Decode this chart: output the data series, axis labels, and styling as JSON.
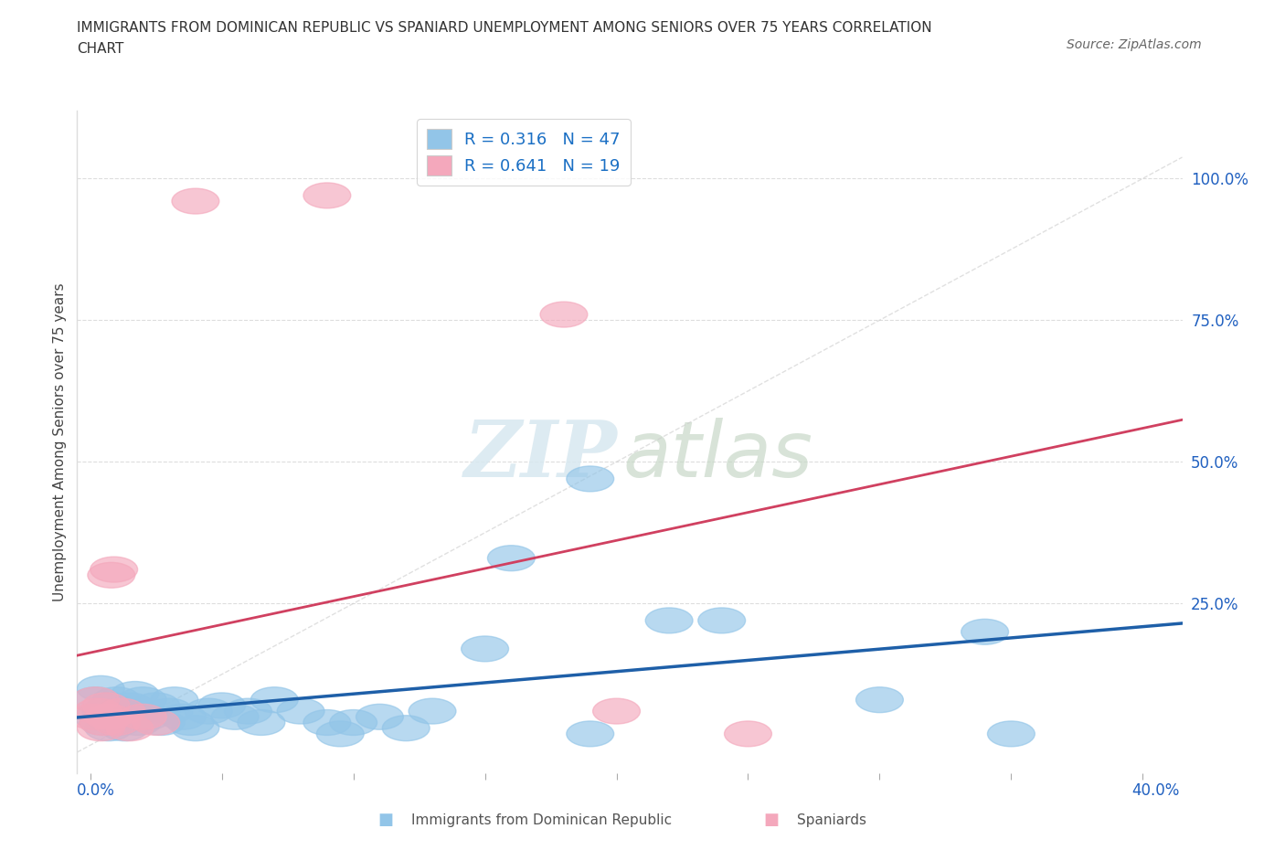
{
  "title_line1": "IMMIGRANTS FROM DOMINICAN REPUBLIC VS SPANIARD UNEMPLOYMENT AMONG SENIORS OVER 75 YEARS CORRELATION",
  "title_line2": "CHART",
  "source_text": "Source: ZipAtlas.com",
  "ylabel": "Unemployment Among Seniors over 75 years",
  "watermark_zip": "ZIP",
  "watermark_atlas": "atlas",
  "legend_label1": "Immigrants from Dominican Republic",
  "legend_label2": "Spaniards",
  "legend_R1": "R = 0.316",
  "legend_N1": "N = 47",
  "legend_R2": "R = 0.641",
  "legend_N2": "N = 19",
  "color_blue": "#92C5E8",
  "color_pink": "#F4A8BC",
  "trendline_blue": "#1E5FA8",
  "trendline_pink": "#D04060",
  "trendline_gray": "#BBBBBB",
  "background": "#FFFFFF",
  "blue_points": [
    [
      0.002,
      0.08
    ],
    [
      0.003,
      0.05
    ],
    [
      0.004,
      0.1
    ],
    [
      0.005,
      0.04
    ],
    [
      0.006,
      0.06
    ],
    [
      0.007,
      0.03
    ],
    [
      0.008,
      0.07
    ],
    [
      0.009,
      0.05
    ],
    [
      0.01,
      0.08
    ],
    [
      0.011,
      0.04
    ],
    [
      0.012,
      0.06
    ],
    [
      0.013,
      0.03
    ],
    [
      0.015,
      0.07
    ],
    [
      0.016,
      0.05
    ],
    [
      0.017,
      0.09
    ],
    [
      0.018,
      0.04
    ],
    [
      0.02,
      0.08
    ],
    [
      0.022,
      0.05
    ],
    [
      0.025,
      0.07
    ],
    [
      0.027,
      0.04
    ],
    [
      0.03,
      0.06
    ],
    [
      0.032,
      0.08
    ],
    [
      0.035,
      0.05
    ],
    [
      0.038,
      0.04
    ],
    [
      0.04,
      0.03
    ],
    [
      0.045,
      0.06
    ],
    [
      0.05,
      0.07
    ],
    [
      0.055,
      0.05
    ],
    [
      0.06,
      0.06
    ],
    [
      0.065,
      0.04
    ],
    [
      0.07,
      0.08
    ],
    [
      0.08,
      0.06
    ],
    [
      0.09,
      0.04
    ],
    [
      0.095,
      0.02
    ],
    [
      0.1,
      0.04
    ],
    [
      0.11,
      0.05
    ],
    [
      0.12,
      0.03
    ],
    [
      0.13,
      0.06
    ],
    [
      0.15,
      0.17
    ],
    [
      0.16,
      0.33
    ],
    [
      0.19,
      0.47
    ],
    [
      0.22,
      0.22
    ],
    [
      0.24,
      0.22
    ],
    [
      0.3,
      0.08
    ],
    [
      0.34,
      0.2
    ],
    [
      0.35,
      0.02
    ],
    [
      0.19,
      0.02
    ]
  ],
  "pink_points": [
    [
      0.001,
      0.05
    ],
    [
      0.002,
      0.08
    ],
    [
      0.003,
      0.06
    ],
    [
      0.004,
      0.03
    ],
    [
      0.005,
      0.04
    ],
    [
      0.006,
      0.07
    ],
    [
      0.007,
      0.05
    ],
    [
      0.008,
      0.3
    ],
    [
      0.009,
      0.31
    ],
    [
      0.01,
      0.04
    ],
    [
      0.012,
      0.06
    ],
    [
      0.015,
      0.03
    ],
    [
      0.02,
      0.05
    ],
    [
      0.025,
      0.04
    ],
    [
      0.04,
      0.96
    ],
    [
      0.09,
      0.97
    ],
    [
      0.18,
      0.76
    ],
    [
      0.2,
      0.06
    ],
    [
      0.25,
      0.02
    ]
  ],
  "xlim": [
    -0.005,
    0.415
  ],
  "ylim": [
    -0.05,
    1.12
  ],
  "ytick_positions": [
    0.25,
    0.5,
    0.75,
    1.0
  ],
  "ytick_labels": [
    "25.0%",
    "50.0%",
    "75.0%",
    "100.0%"
  ],
  "xtick_positions": [
    0.0,
    0.05,
    0.1,
    0.15,
    0.2,
    0.25,
    0.3,
    0.35,
    0.4
  ],
  "xtick_edge_labels": [
    "0.0%",
    "40.0%"
  ]
}
